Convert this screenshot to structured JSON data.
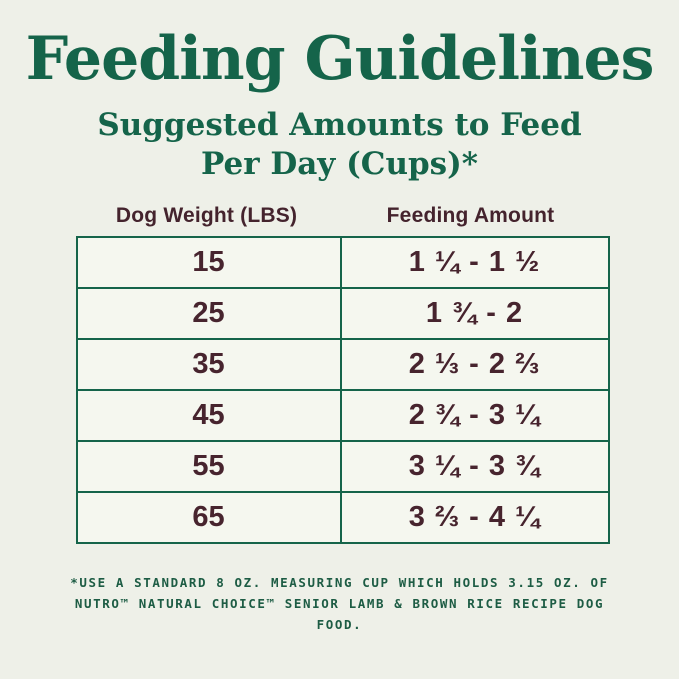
{
  "page": {
    "title": "Feeding Guidelines",
    "subtitle_line1": "Suggested Amounts to Feed",
    "subtitle_line2": "Per Day (Cups)*"
  },
  "colors": {
    "brand_green": "#15644a",
    "text_brown": "#47242e",
    "page_background": "#eef0e8",
    "cell_background": "#f5f7ef"
  },
  "table": {
    "columns": [
      "Dog Weight (LBS)",
      "Feeding Amount"
    ],
    "rows": [
      {
        "weight": "15",
        "amount": "1 ¼ - 1 ½"
      },
      {
        "weight": "25",
        "amount": "1 ¾ - 2"
      },
      {
        "weight": "35",
        "amount": "2 ⅓ - 2 ⅔"
      },
      {
        "weight": "45",
        "amount": "2 ¾ - 3 ¼"
      },
      {
        "weight": "55",
        "amount": "3 ¼ - 3 ¾"
      },
      {
        "weight": "65",
        "amount": "3 ⅔ - 4 ¼"
      }
    ]
  },
  "footnote": {
    "line1": "*USE A STANDARD 8 OZ. MEASURING CUP WHICH HOLDS 3.15 OZ. OF",
    "line2": "NUTRO™ NATURAL CHOICE™ SENIOR LAMB & BROWN RICE RECIPE DOG FOOD."
  }
}
